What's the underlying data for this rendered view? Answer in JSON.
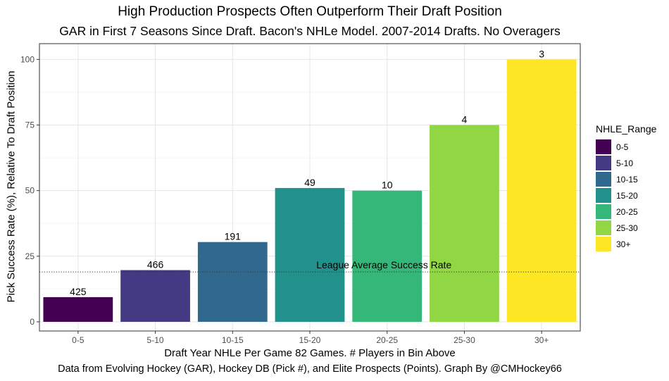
{
  "chart_data": {
    "type": "bar",
    "title": "High Production Prospects Often Outperform Their Draft Position",
    "subtitle": "GAR in First 7 Seasons Since Draft. Bacon's NHLe Model. 2007-2014 Drafts. No Overagers",
    "xlabel": "Draft Year NHLe Per Game 82 Games. # Players in Bin Above",
    "ylabel": "Pick Success Rate (%), Relative To Draft Position",
    "caption": "Data from Evolving Hockey (GAR), Hockey DB (Pick #), and Elite Prospects (Points). Graph By @CMHockey66",
    "categories": [
      "0-5",
      "5-10",
      "10-15",
      "15-20",
      "20-25",
      "25-30",
      "30+"
    ],
    "values": [
      9.4,
      19.7,
      30.4,
      51.0,
      50.0,
      75.0,
      100.0
    ],
    "bar_labels": [
      "425",
      "466",
      "191",
      "49",
      "10",
      "4",
      "3"
    ],
    "colors": [
      "#440154",
      "#443983",
      "#31688e",
      "#21918c",
      "#35b779",
      "#90d743",
      "#fde725"
    ],
    "ylim": [
      -3.5,
      106
    ],
    "yticks": [
      0,
      25,
      50,
      75,
      100
    ],
    "grid": true,
    "legend": {
      "title": "NHLE_Range",
      "position": "right",
      "entries": [
        "0-5",
        "5-10",
        "10-15",
        "15-20",
        "20-25",
        "25-30",
        "30+"
      ]
    },
    "reference_line": {
      "value": 19,
      "label": "League Average Success Rate",
      "style": "dotted"
    }
  }
}
